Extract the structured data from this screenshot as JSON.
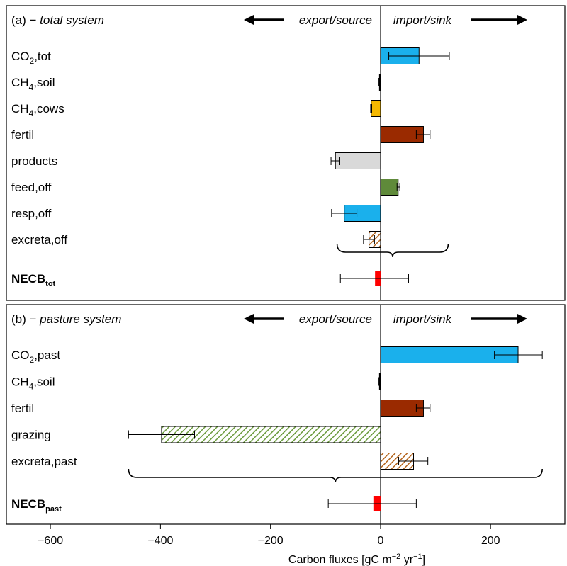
{
  "chart_data": {
    "type": "bar",
    "orientation": "horizontal",
    "xlabel": "Carbon fluxes [gC m",
    "xlabel_sup1": "−2",
    "xlabel_mid": " yr",
    "xlabel_sup2": "−1",
    "xlabel_end": "]",
    "xlim": [
      -680,
      335
    ],
    "xticks": [
      -600,
      -400,
      -200,
      0,
      200
    ],
    "xtick_labels": [
      "−600",
      "−400",
      "−200",
      "0",
      "200"
    ],
    "export_label": "export/source",
    "import_label": "import/sink",
    "panels": [
      {
        "letter": "(a) − ",
        "title": "total system",
        "bars": [
          {
            "base": "CO",
            "sub": "2",
            "rest": ",tot",
            "value": 70,
            "err_low": 15,
            "err_high": 125,
            "color": "#1ab0ec",
            "hatch": false
          },
          {
            "base": "CH",
            "sub": "4",
            "rest": ",soil",
            "value": -2,
            "err_low": -3,
            "err_high": -1,
            "color": "#000000",
            "hatch": false
          },
          {
            "base": "CH",
            "sub": "4",
            "rest": ",cows",
            "value": -17,
            "err_low": -18,
            "err_high": -16,
            "color": "#f5b800",
            "hatch": false
          },
          {
            "base": "fertil",
            "sub": "",
            "rest": "",
            "value": 78,
            "err_low": 65,
            "err_high": 90,
            "color": "#9a2a00",
            "hatch": false
          },
          {
            "base": "products",
            "sub": "",
            "rest": "",
            "value": -82,
            "err_low": -90,
            "err_high": -74,
            "color": "#d9d9d9",
            "hatch": false
          },
          {
            "base": "feed,off",
            "sub": "",
            "rest": "",
            "value": 32,
            "err_low": 30,
            "err_high": 35,
            "color": "#5f8a3a",
            "hatch": false
          },
          {
            "base": "resp,off",
            "sub": "",
            "rest": "",
            "value": -66,
            "err_low": -89,
            "err_high": -43,
            "color": "#1ab0ec",
            "hatch": false
          },
          {
            "base": "excreta,off",
            "sub": "",
            "rest": "",
            "value": -21,
            "err_low": -31,
            "err_high": -11,
            "color": "#b5651d",
            "hatch": true
          }
        ],
        "brace": [
          -79,
          123
        ],
        "necb": {
          "base": "NECB",
          "sub": "tot",
          "value": -10,
          "err_low": -73,
          "err_high": 51,
          "color": "#ff0000"
        }
      },
      {
        "letter": "(b) − ",
        "title": "pasture system",
        "bars": [
          {
            "base": "CO",
            "sub": "2",
            "rest": ",past",
            "value": 250,
            "err_low": 207,
            "err_high": 294,
            "color": "#1ab0ec",
            "hatch": false
          },
          {
            "base": "CH",
            "sub": "4",
            "rest": ",soil",
            "value": -2,
            "err_low": -3,
            "err_high": -1,
            "color": "#000000",
            "hatch": false
          },
          {
            "base": "fertil",
            "sub": "",
            "rest": "",
            "value": 78,
            "err_low": 65,
            "err_high": 90,
            "color": "#9a2a00",
            "hatch": false
          },
          {
            "base": "grazing",
            "sub": "",
            "rest": "",
            "value": -398,
            "err_low": -458,
            "err_high": -338,
            "color": "#6a9a3c",
            "hatch": true
          },
          {
            "base": "excreta,past",
            "sub": "",
            "rest": "",
            "value": 60,
            "err_low": 33,
            "err_high": 86,
            "color": "#b5651d",
            "hatch": true
          }
        ],
        "brace": [
          -458,
          294
        ],
        "necb": {
          "base": "NECB",
          "sub": "past",
          "value": -13,
          "err_low": -95,
          "err_high": 65,
          "color": "#ff0000"
        }
      }
    ]
  }
}
